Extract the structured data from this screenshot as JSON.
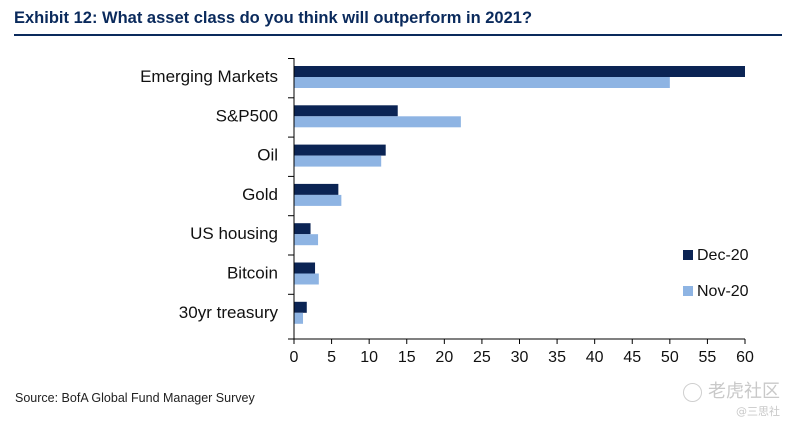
{
  "header": {
    "title": "Exhibit 12: What asset class do you think will outperform in 2021?"
  },
  "chart_data": {
    "type": "bar",
    "orientation": "horizontal",
    "categories": [
      "Emerging Markets",
      "S&P500",
      "Oil",
      "Gold",
      "US housing",
      "Bitcoin",
      "30yr treasury"
    ],
    "series": [
      {
        "name": "Dec-20",
        "color": "#0b2454",
        "values": [
          60,
          13.8,
          12.2,
          5.9,
          2.2,
          2.8,
          1.7
        ]
      },
      {
        "name": "Nov-20",
        "color": "#8eb4e3",
        "values": [
          50,
          22.2,
          11.6,
          6.3,
          3.2,
          3.3,
          1.2
        ]
      }
    ],
    "x_ticks": [
      "0",
      "5",
      "10",
      "15",
      "20",
      "25",
      "30",
      "35",
      "40",
      "45",
      "50",
      "55",
      "60"
    ],
    "xlim": [
      0,
      60
    ],
    "xlabel": "",
    "ylabel": "",
    "legend_position": "right",
    "grid": false
  },
  "footer": {
    "source": "Source: BofA Global Fund Manager Survey"
  },
  "watermark": {
    "main": "老虎社区",
    "sub": "@三思社"
  }
}
